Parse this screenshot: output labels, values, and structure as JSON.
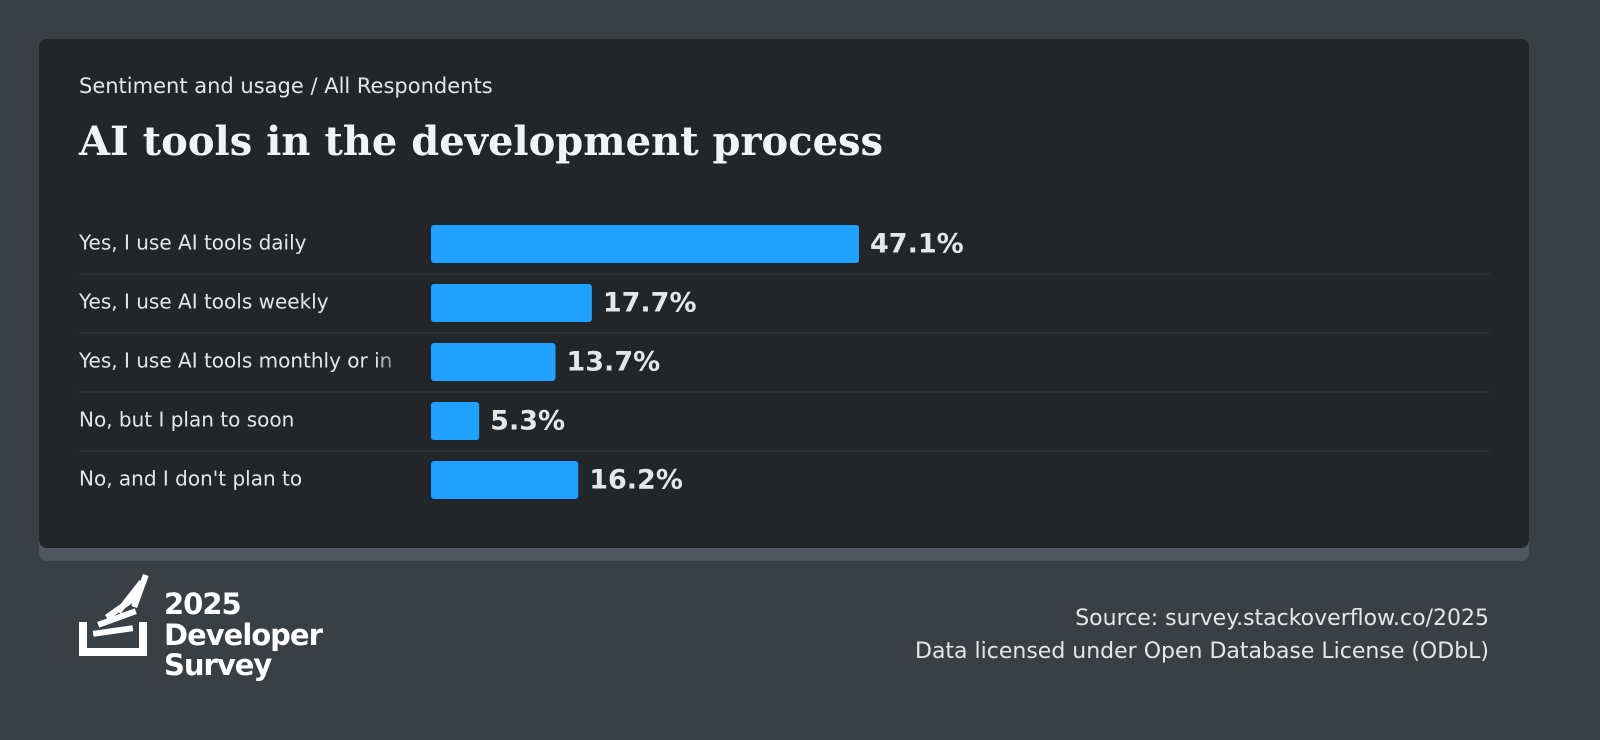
{
  "chart_data": {
    "type": "bar",
    "subtitle": "Sentiment and usage / All Respondents",
    "title": "AI tools in the development process",
    "categories": [
      "Yes, I use AI tools daily",
      "Yes, I use AI tools weekly",
      "Yes, I use AI tools monthly or in",
      "No, but I plan to soon",
      "No, and I don't plan to"
    ],
    "values": [
      47.1,
      17.7,
      13.7,
      5.3,
      16.2
    ],
    "value_labels": [
      "47.1%",
      "17.7%",
      "13.7%",
      "5.3%",
      "16.2%"
    ],
    "color": "#1ea1ff"
  },
  "footer": {
    "logo": [
      "2025",
      "Developer",
      "Survey"
    ],
    "source": "Source: survey.stackoverflow.co/2025",
    "license": "Data licensed under Open Database License (ODbL)"
  }
}
